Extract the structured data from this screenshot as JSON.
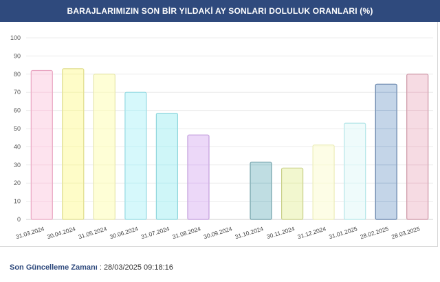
{
  "header": {
    "title": "BARAJLARIMIZIN SON BİR YILDAKİ AY SONLARI DOLULUK ORANLARI (%)"
  },
  "footer": {
    "label": "Son Güncelleme Zamanı",
    "separator": " : ",
    "value": "28/03/2025 09:18:16"
  },
  "chart_data": {
    "type": "bar",
    "title": "BARAJLARIMIZIN SON BİR YILDAKİ AY SONLARI DOLULUK ORANLARI (%)",
    "xlabel": "",
    "ylabel": "",
    "ylim": [
      0,
      100
    ],
    "yticks": [
      0,
      10,
      20,
      30,
      40,
      50,
      60,
      70,
      80,
      90,
      100
    ],
    "grid": true,
    "legend": "none",
    "categories": [
      "31.03.2024",
      "30.04.2024",
      "31.05.2024",
      "30.06.2024",
      "31.07.2024",
      "31.08.2024",
      "30.09.2024",
      "31.10.2024",
      "30.11.2024",
      "31.12.2024",
      "31.01.2025",
      "28.02.2025",
      "28.03.2025"
    ],
    "values": [
      82,
      83,
      80,
      70,
      58.5,
      46.5,
      0,
      31.5,
      28.3,
      41,
      53,
      74.5,
      80
    ],
    "colors": [
      {
        "fill": "#fde3ee",
        "stroke": "#e9a6c2"
      },
      {
        "fill": "#fefcc8",
        "stroke": "#dedc8a"
      },
      {
        "fill": "#fefed6",
        "stroke": "#e6e6a8"
      },
      {
        "fill": "#d6f8fb",
        "stroke": "#94d9e1"
      },
      {
        "fill": "#cff6f8",
        "stroke": "#8fd6dc"
      },
      {
        "fill": "#ecd8f8",
        "stroke": "#c29ddc"
      },
      {
        "fill": "#ffffff",
        "stroke": "#ffffff"
      },
      {
        "fill": "#bfdde2",
        "stroke": "#6f9fa8"
      },
      {
        "fill": "#f2f7cf",
        "stroke": "#c8cf88"
      },
      {
        "fill": "#fdfde6",
        "stroke": "#ecedb8"
      },
      {
        "fill": "#effbfb",
        "stroke": "#b4e6e8"
      },
      {
        "fill": "#c4d5e8",
        "stroke": "#5f7ea6"
      },
      {
        "fill": "#f6dbe3",
        "stroke": "#cc93a4"
      }
    ]
  }
}
